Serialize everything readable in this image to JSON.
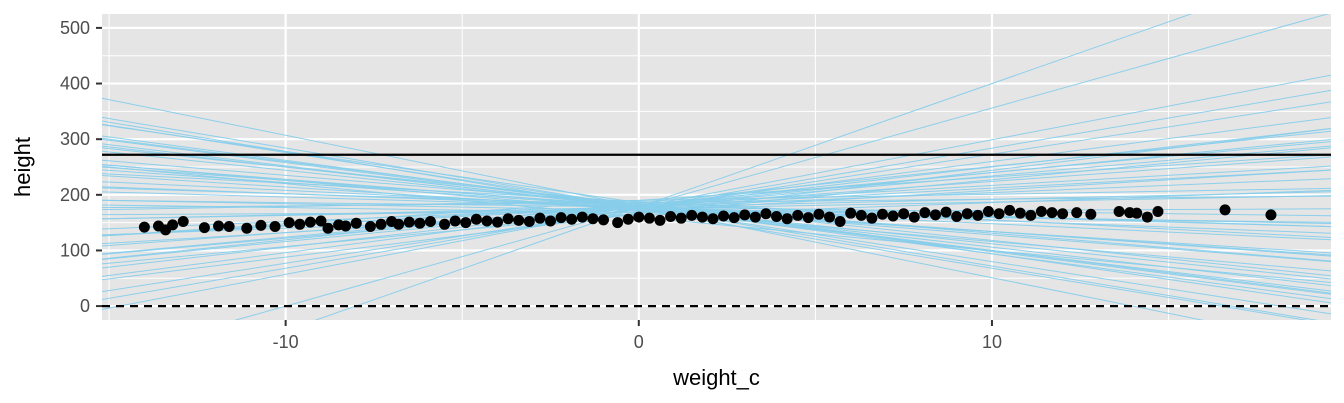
{
  "chart_data": {
    "type": "scatter",
    "title": "",
    "xlabel": "weight_c",
    "ylabel": "height",
    "xlim": [
      -15.2,
      19.6
    ],
    "ylim": [
      -25,
      525
    ],
    "x_ticks": [
      -10,
      0,
      10
    ],
    "x_minor_ticks": [
      -15,
      -5,
      5,
      15
    ],
    "y_ticks": [
      0,
      100,
      200,
      300,
      400,
      500
    ],
    "y_minor_ticks": [
      50,
      150,
      250,
      350,
      450
    ],
    "grid": true,
    "legend": "none",
    "colors": {
      "panel": "#e5e5e5",
      "grid": "#ffffff",
      "points": "#000000",
      "prior_lines": "#87ceeb",
      "reference_lines": "#000000"
    },
    "reference_lines": [
      {
        "name": "",
        "y": 272,
        "style": "solid"
      },
      {
        "name": "",
        "y": 0,
        "style": "dashed"
      }
    ],
    "prior_lines": [
      {
        "intercept": 178,
        "slope": -10.6
      },
      {
        "intercept": 178,
        "slope": -9.8
      },
      {
        "intercept": 178,
        "slope": -8.4
      },
      {
        "intercept": 178,
        "slope": -8.0
      },
      {
        "intercept": 178,
        "slope": -7.2
      },
      {
        "intercept": 178,
        "slope": -6.6
      },
      {
        "intercept": 178,
        "slope": -5.0
      },
      {
        "intercept": 178,
        "slope": -4.4
      },
      {
        "intercept": 178,
        "slope": -3.0
      },
      {
        "intercept": 178,
        "slope": -2.4
      },
      {
        "intercept": 178,
        "slope": -1.8
      },
      {
        "intercept": 178,
        "slope": -0.8
      },
      {
        "intercept": 178,
        "slope": 1.4
      },
      {
        "intercept": 178,
        "slope": 2.6
      },
      {
        "intercept": 178,
        "slope": 3.4
      },
      {
        "intercept": 178,
        "slope": 4.6
      },
      {
        "intercept": 178,
        "slope": 5.6
      },
      {
        "intercept": 178,
        "slope": 6.2
      },
      {
        "intercept": 178,
        "slope": 7.2
      },
      {
        "intercept": 178,
        "slope": 8.2
      },
      {
        "intercept": 178,
        "slope": 12.1
      },
      {
        "intercept": 178,
        "slope": 17.8
      },
      {
        "intercept": 178,
        "slope": 22.2
      },
      {
        "intercept": 175,
        "slope": 1.2
      },
      {
        "intercept": 176,
        "slope": -7.6
      },
      {
        "intercept": 180,
        "slope": -4.6
      },
      {
        "intercept": 182,
        "slope": -2.0
      },
      {
        "intercept": 181,
        "slope": 3.6
      },
      {
        "intercept": 182,
        "slope": 5.8
      },
      {
        "intercept": 184,
        "slope": -6.6
      },
      {
        "intercept": 185,
        "slope": 6.6
      },
      {
        "intercept": 174,
        "slope": -4.0
      },
      {
        "intercept": 170,
        "slope": 3.8
      },
      {
        "intercept": 172,
        "slope": -1.2
      },
      {
        "intercept": 186,
        "slope": -9.2
      },
      {
        "intercept": 186,
        "slope": 0.6
      },
      {
        "intercept": 175,
        "slope": 9.8
      },
      {
        "intercept": 179,
        "slope": -12.8
      },
      {
        "intercept": 160,
        "slope": -6.0
      },
      {
        "intercept": 168,
        "slope": -0.9
      },
      {
        "intercept": 167,
        "slope": 6.0
      },
      {
        "intercept": 176,
        "slope": 10.8
      },
      {
        "intercept": 180,
        "slope": -8.0
      },
      {
        "intercept": 163,
        "slope": 2.3
      },
      {
        "intercept": 190,
        "slope": 1.1
      },
      {
        "intercept": 188,
        "slope": -3.3
      },
      {
        "intercept": 190,
        "slope": 4.2
      },
      {
        "intercept": 171,
        "slope": -5.5
      },
      {
        "intercept": 166,
        "slope": 7.8
      },
      {
        "intercept": 173,
        "slope": -10.5
      },
      {
        "intercept": 169,
        "slope": 0.3
      },
      {
        "intercept": 183,
        "slope": -5.2
      }
    ],
    "points": [
      {
        "x": -14.0,
        "y": 142
      },
      {
        "x": -13.6,
        "y": 144
      },
      {
        "x": -13.4,
        "y": 137
      },
      {
        "x": -13.2,
        "y": 146
      },
      {
        "x": -12.9,
        "y": 152
      },
      {
        "x": -12.3,
        "y": 141
      },
      {
        "x": -11.9,
        "y": 144
      },
      {
        "x": -11.6,
        "y": 143
      },
      {
        "x": -11.1,
        "y": 140
      },
      {
        "x": -10.7,
        "y": 145
      },
      {
        "x": -10.3,
        "y": 143
      },
      {
        "x": -9.9,
        "y": 150
      },
      {
        "x": -9.6,
        "y": 147
      },
      {
        "x": -9.3,
        "y": 151
      },
      {
        "x": -9.0,
        "y": 153
      },
      {
        "x": -8.8,
        "y": 140
      },
      {
        "x": -8.5,
        "y": 146
      },
      {
        "x": -8.3,
        "y": 144
      },
      {
        "x": -8.0,
        "y": 149
      },
      {
        "x": -7.6,
        "y": 143
      },
      {
        "x": -7.3,
        "y": 147
      },
      {
        "x": -7.0,
        "y": 152
      },
      {
        "x": -6.8,
        "y": 147
      },
      {
        "x": -6.5,
        "y": 151
      },
      {
        "x": -6.2,
        "y": 149
      },
      {
        "x": -5.9,
        "y": 152
      },
      {
        "x": -5.5,
        "y": 147
      },
      {
        "x": -5.2,
        "y": 153
      },
      {
        "x": -4.9,
        "y": 150
      },
      {
        "x": -4.6,
        "y": 156
      },
      {
        "x": -4.3,
        "y": 153
      },
      {
        "x": -4.0,
        "y": 151
      },
      {
        "x": -3.7,
        "y": 157
      },
      {
        "x": -3.4,
        "y": 154
      },
      {
        "x": -3.1,
        "y": 152
      },
      {
        "x": -2.8,
        "y": 158
      },
      {
        "x": -2.5,
        "y": 153
      },
      {
        "x": -2.2,
        "y": 159
      },
      {
        "x": -1.9,
        "y": 156
      },
      {
        "x": -1.6,
        "y": 160
      },
      {
        "x": -1.3,
        "y": 157
      },
      {
        "x": -1.0,
        "y": 155
      },
      {
        "x": -0.6,
        "y": 150
      },
      {
        "x": -0.3,
        "y": 156
      },
      {
        "x": 0.0,
        "y": 160
      },
      {
        "x": 0.3,
        "y": 158
      },
      {
        "x": 0.6,
        "y": 154
      },
      {
        "x": 0.9,
        "y": 161
      },
      {
        "x": 1.2,
        "y": 158
      },
      {
        "x": 1.5,
        "y": 163
      },
      {
        "x": 1.8,
        "y": 160
      },
      {
        "x": 2.1,
        "y": 157
      },
      {
        "x": 2.4,
        "y": 162
      },
      {
        "x": 2.7,
        "y": 159
      },
      {
        "x": 3.0,
        "y": 164
      },
      {
        "x": 3.3,
        "y": 160
      },
      {
        "x": 3.6,
        "y": 166
      },
      {
        "x": 3.9,
        "y": 161
      },
      {
        "x": 4.2,
        "y": 157
      },
      {
        "x": 4.5,
        "y": 163
      },
      {
        "x": 4.8,
        "y": 159
      },
      {
        "x": 5.1,
        "y": 165
      },
      {
        "x": 5.4,
        "y": 160
      },
      {
        "x": 5.7,
        "y": 152
      },
      {
        "x": 6.0,
        "y": 167
      },
      {
        "x": 6.3,
        "y": 163
      },
      {
        "x": 6.6,
        "y": 158
      },
      {
        "x": 6.9,
        "y": 165
      },
      {
        "x": 7.2,
        "y": 162
      },
      {
        "x": 7.5,
        "y": 166
      },
      {
        "x": 7.8,
        "y": 160
      },
      {
        "x": 8.1,
        "y": 168
      },
      {
        "x": 8.4,
        "y": 164
      },
      {
        "x": 8.7,
        "y": 169
      },
      {
        "x": 9.0,
        "y": 161
      },
      {
        "x": 9.3,
        "y": 166
      },
      {
        "x": 9.6,
        "y": 163
      },
      {
        "x": 9.9,
        "y": 170
      },
      {
        "x": 10.2,
        "y": 166
      },
      {
        "x": 10.5,
        "y": 172
      },
      {
        "x": 10.8,
        "y": 167
      },
      {
        "x": 11.1,
        "y": 163
      },
      {
        "x": 11.4,
        "y": 170
      },
      {
        "x": 11.7,
        "y": 168
      },
      {
        "x": 12.0,
        "y": 166
      },
      {
        "x": 12.4,
        "y": 168
      },
      {
        "x": 12.8,
        "y": 165
      },
      {
        "x": 13.6,
        "y": 170
      },
      {
        "x": 13.9,
        "y": 168
      },
      {
        "x": 14.1,
        "y": 167
      },
      {
        "x": 14.4,
        "y": 160
      },
      {
        "x": 14.7,
        "y": 170
      },
      {
        "x": 16.6,
        "y": 173
      },
      {
        "x": 17.9,
        "y": 164
      }
    ]
  }
}
